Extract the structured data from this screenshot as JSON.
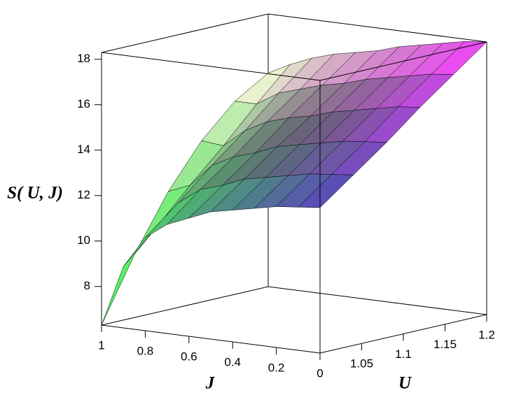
{
  "chart_data": {
    "type": "surface",
    "zlabel": "S( U, J)",
    "ulabel": "U",
    "jlabel": "J",
    "u": [
      1,
      1.04,
      1.08,
      1.12,
      1.16,
      1.2
    ],
    "j": [
      0,
      0.1,
      0.2,
      0.3,
      0.4,
      0.5,
      0.6,
      0.7,
      0.8,
      0.9,
      1
    ],
    "z": [
      [
        12.7,
        13.8,
        14.9,
        16.1,
        17.2,
        18.3
      ],
      [
        12.6,
        13.7,
        14.8,
        16.0,
        17.1,
        18.2
      ],
      [
        12.5,
        13.6,
        14.7,
        15.8,
        16.9,
        18.0
      ],
      [
        12.3,
        13.4,
        14.5,
        15.6,
        16.7,
        17.8
      ],
      [
        12.1,
        13.2,
        14.3,
        15.4,
        16.5,
        17.6
      ],
      [
        11.9,
        13.0,
        14.1,
        15.1,
        16.2,
        17.3
      ],
      [
        11.5,
        12.6,
        13.7,
        14.9,
        16.0,
        17.1
      ],
      [
        11.1,
        12.3,
        13.4,
        14.6,
        15.7,
        16.9
      ],
      [
        10.4,
        11.6,
        12.9,
        14.1,
        15.4,
        16.6
      ],
      [
        9.0,
        10.4,
        11.9,
        13.3,
        14.8,
        16.2
      ],
      [
        6.3,
        9.1,
        11.5,
        13.4,
        14.8,
        15.7
      ]
    ],
    "ulim": [
      1,
      1.2
    ],
    "jlim": [
      0,
      1
    ],
    "zlim": [
      6.3,
      18.3
    ],
    "uticks": [
      1.05,
      1.1,
      1.15,
      1.2
    ],
    "jticks": [
      1,
      0.8,
      0.6,
      0.4,
      0.2,
      0
    ],
    "zticks": [
      8,
      10,
      12,
      14,
      16,
      18
    ],
    "colors": {
      "low_u_low_j": "#4848b4",
      "high_u_low_j": "#ff44ff",
      "low_u_high_j": "#44ff55",
      "high_u_high_j": "#ffffdc"
    }
  }
}
